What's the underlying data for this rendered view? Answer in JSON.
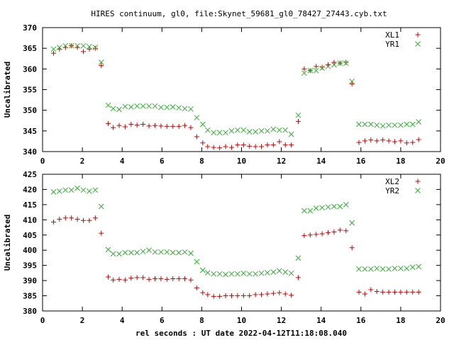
{
  "figure_title": "HIRES continuum, gl0, file:Skynet_59681_gl0_78427_27443.cyb.txt",
  "xlabel": "rel seconds : UT date 2022-04-12T11:18:08.040",
  "colors": {
    "series_a": "#cc0000",
    "series_b": "#33aa33"
  },
  "chart_data": [
    {
      "type": "scatter",
      "ylabel": "Uncalibrated",
      "xlim": [
        0,
        20
      ],
      "ylim": [
        340,
        370
      ],
      "xticks": [
        0,
        2,
        4,
        6,
        8,
        10,
        12,
        14,
        16,
        18,
        20
      ],
      "yticks": [
        340,
        345,
        350,
        355,
        360,
        365,
        370
      ],
      "legend_position": "top-right",
      "x": [
        0.55,
        0.85,
        1.15,
        1.45,
        1.75,
        2.05,
        2.35,
        2.65,
        2.95,
        3.3,
        3.55,
        3.85,
        4.15,
        4.45,
        4.75,
        5.05,
        5.35,
        5.65,
        5.95,
        6.25,
        6.55,
        6.85,
        7.15,
        7.45,
        7.75,
        8.05,
        8.3,
        8.6,
        8.9,
        9.2,
        9.5,
        9.8,
        10.1,
        10.4,
        10.7,
        11.0,
        11.3,
        11.6,
        11.9,
        12.2,
        12.5,
        12.85,
        13.15,
        13.45,
        13.75,
        14.05,
        14.35,
        14.65,
        14.95,
        15.25,
        15.55,
        15.9,
        16.2,
        16.5,
        16.8,
        17.1,
        17.4,
        17.7,
        18.0,
        18.3,
        18.6,
        18.9
      ],
      "series": [
        {
          "name": "XL1",
          "marker": "+",
          "values": [
            363.8,
            364.8,
            365.2,
            365.6,
            365.2,
            364.2,
            364.8,
            365.0,
            360.8,
            346.8,
            345.8,
            346.3,
            346.0,
            346.6,
            346.4,
            346.6,
            346.2,
            346.3,
            346.2,
            346.1,
            346.1,
            346.1,
            346.3,
            345.8,
            343.6,
            342.1,
            341.2,
            341.0,
            340.9,
            341.2,
            341.0,
            341.6,
            341.6,
            341.3,
            341.2,
            341.2,
            341.6,
            341.6,
            342.4,
            341.6,
            341.6,
            347.3,
            360.0,
            359.6,
            360.6,
            360.4,
            361.0,
            361.6,
            361.4,
            361.6,
            356.4,
            342.2,
            342.6,
            342.8,
            342.6,
            342.8,
            342.6,
            342.4,
            342.6,
            342.1,
            342.2,
            342.9
          ]
        },
        {
          "name": "YR1",
          "marker": "x",
          "values": [
            364.8,
            365.2,
            365.6,
            365.6,
            365.6,
            365.6,
            365.4,
            365.2,
            361.6,
            351.2,
            350.4,
            350.2,
            350.9,
            350.8,
            351.0,
            351.0,
            351.0,
            351.0,
            350.7,
            350.7,
            350.8,
            350.6,
            350.4,
            350.3,
            348.2,
            346.6,
            345.2,
            344.6,
            344.6,
            344.6,
            345.0,
            345.2,
            345.2,
            344.8,
            344.8,
            345.0,
            345.0,
            345.4,
            345.2,
            345.2,
            344.2,
            348.8,
            359.0,
            359.6,
            359.6,
            360.2,
            360.6,
            361.0,
            361.4,
            361.4,
            357.0,
            346.6,
            346.6,
            346.6,
            346.4,
            346.2,
            346.4,
            346.4,
            346.4,
            346.6,
            346.6,
            347.2
          ]
        }
      ]
    },
    {
      "type": "scatter",
      "ylabel": "Uncalibrated",
      "xlim": [
        0,
        20
      ],
      "ylim": [
        380,
        425
      ],
      "xticks": [
        0,
        2,
        4,
        6,
        8,
        10,
        12,
        14,
        16,
        18,
        20
      ],
      "yticks": [
        380,
        385,
        390,
        395,
        400,
        405,
        410,
        415,
        420,
        425
      ],
      "legend_position": "top-right",
      "x": [
        0.55,
        0.85,
        1.15,
        1.45,
        1.75,
        2.05,
        2.35,
        2.65,
        2.95,
        3.3,
        3.55,
        3.85,
        4.15,
        4.45,
        4.75,
        5.05,
        5.35,
        5.65,
        5.95,
        6.25,
        6.55,
        6.85,
        7.15,
        7.45,
        7.75,
        8.05,
        8.3,
        8.6,
        8.9,
        9.2,
        9.5,
        9.8,
        10.1,
        10.4,
        10.7,
        11.0,
        11.3,
        11.6,
        11.9,
        12.2,
        12.5,
        12.85,
        13.15,
        13.45,
        13.75,
        14.05,
        14.35,
        14.65,
        14.95,
        15.25,
        15.55,
        15.9,
        16.2,
        16.5,
        16.8,
        17.1,
        17.4,
        17.7,
        18.0,
        18.3,
        18.6,
        18.9
      ],
      "series": [
        {
          "name": "XL2",
          "marker": "+",
          "values": [
            409.3,
            410.2,
            410.6,
            410.6,
            410.2,
            409.8,
            409.8,
            410.6,
            405.6,
            391.2,
            390.2,
            390.4,
            390.2,
            390.8,
            391.0,
            391.0,
            390.4,
            390.6,
            390.6,
            390.4,
            390.6,
            390.6,
            390.6,
            390.2,
            387.6,
            386.0,
            385.4,
            384.8,
            384.8,
            385.0,
            385.0,
            385.0,
            385.0,
            385.0,
            385.4,
            385.4,
            385.6,
            385.8,
            386.0,
            385.6,
            385.2,
            391.0,
            404.8,
            405.0,
            405.2,
            405.4,
            405.8,
            406.0,
            406.6,
            406.4,
            400.8,
            386.2,
            385.6,
            387.0,
            386.4,
            386.2,
            386.2,
            386.2,
            386.2,
            386.2,
            386.2,
            386.2
          ]
        },
        {
          "name": "YR2",
          "marker": "x",
          "values": [
            419.2,
            419.4,
            419.8,
            419.8,
            420.4,
            419.8,
            419.4,
            419.8,
            414.4,
            400.2,
            398.8,
            398.8,
            399.2,
            399.2,
            399.2,
            399.6,
            400.0,
            399.4,
            399.4,
            399.4,
            399.2,
            399.2,
            399.4,
            399.0,
            396.2,
            393.4,
            392.6,
            392.2,
            392.2,
            392.0,
            392.2,
            392.2,
            392.4,
            392.2,
            392.2,
            392.4,
            392.6,
            392.8,
            393.2,
            392.8,
            392.4,
            397.4,
            413.0,
            413.0,
            413.8,
            414.0,
            414.2,
            414.4,
            414.4,
            415.0,
            409.0,
            393.8,
            393.8,
            393.8,
            394.0,
            393.8,
            393.8,
            394.0,
            394.0,
            394.0,
            394.4,
            394.6
          ]
        }
      ]
    }
  ]
}
